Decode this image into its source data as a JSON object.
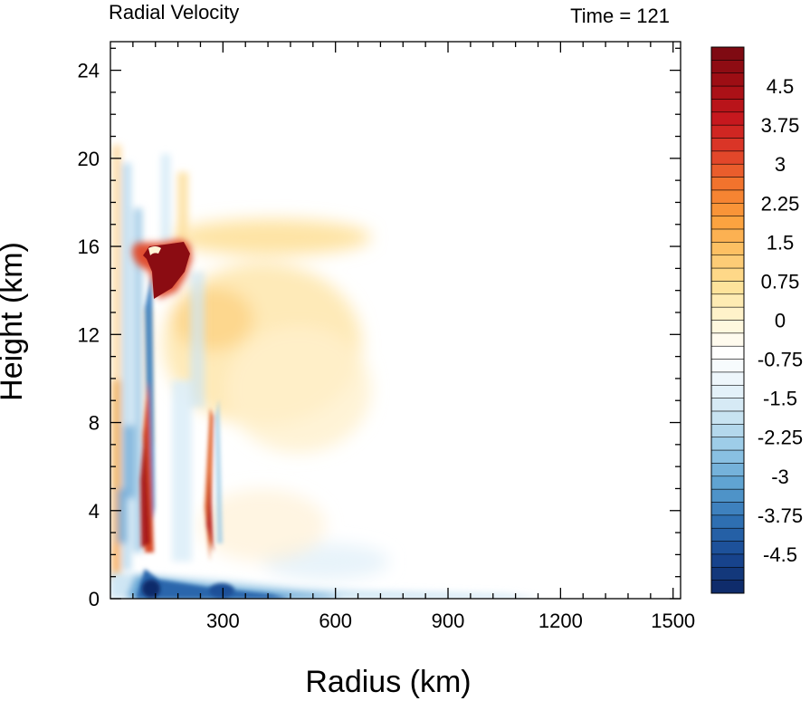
{
  "chart_data": {
    "type": "heatmap",
    "title_left": "Radial Velocity",
    "title_right": "Time = 121",
    "xlabel": "Radius (km)",
    "ylabel": "Height (km)",
    "xlim": [
      0,
      1520
    ],
    "ylim": [
      0,
      25.3
    ],
    "xticks": [
      300,
      600,
      900,
      1200,
      1500
    ],
    "yticks": [
      0,
      4,
      8,
      12,
      16,
      20,
      24
    ],
    "colorbar": {
      "range": [
        -5.25,
        5.25
      ],
      "levels": 42,
      "labels": [
        "4.5",
        "3.75",
        "3",
        "2.25",
        "1.5",
        "0.75",
        "0",
        "-0.75",
        "-1.5",
        "-2.25",
        "-3",
        "-3.75",
        "-4.5"
      ],
      "label_values": [
        4.5,
        3.75,
        3,
        2.25,
        1.5,
        0.75,
        0,
        -0.75,
        -1.5,
        -2.25,
        -3,
        -3.75,
        -4.5
      ],
      "palette": [
        "#7f0a12",
        "#a50f15",
        "#c8181e",
        "#e0402a",
        "#f4792d",
        "#fca03d",
        "#fdc56a",
        "#fee39a",
        "#fff6d6",
        "#ffffff",
        "#e8f3fa",
        "#c6e2f0",
        "#8ec4e4",
        "#5a9fd0",
        "#2f71b4",
        "#194a95",
        "#0f2c6b"
      ]
    },
    "features": [
      {
        "name": "outflow core",
        "x": [
          110,
          210
        ],
        "y": [
          13.8,
          16.0
        ],
        "value": 5.25
      },
      {
        "name": "upper outflow",
        "x": [
          200,
          450
        ],
        "y": [
          14.0,
          17.0
        ],
        "value": 1.4
      },
      {
        "name": "mid-level outflow",
        "x": [
          200,
          470
        ],
        "y": [
          8.0,
          14.0
        ],
        "value": 1.2
      },
      {
        "name": "inner inflow band",
        "x": [
          80,
          120
        ],
        "y": [
          2.0,
          12.0
        ],
        "value": -2.5
      },
      {
        "name": "low-level outflow jet",
        "x": [
          90,
          120
        ],
        "y": [
          1.0,
          7.0
        ],
        "value": 4.5
      },
      {
        "name": "outer low-level outflow",
        "x": [
          230,
          260
        ],
        "y": [
          1.0,
          8.5
        ],
        "value": 3.8
      },
      {
        "name": "boundary layer inflow",
        "x": [
          80,
          560
        ],
        "y": [
          0,
          1.5
        ],
        "value": -4.5
      }
    ]
  }
}
